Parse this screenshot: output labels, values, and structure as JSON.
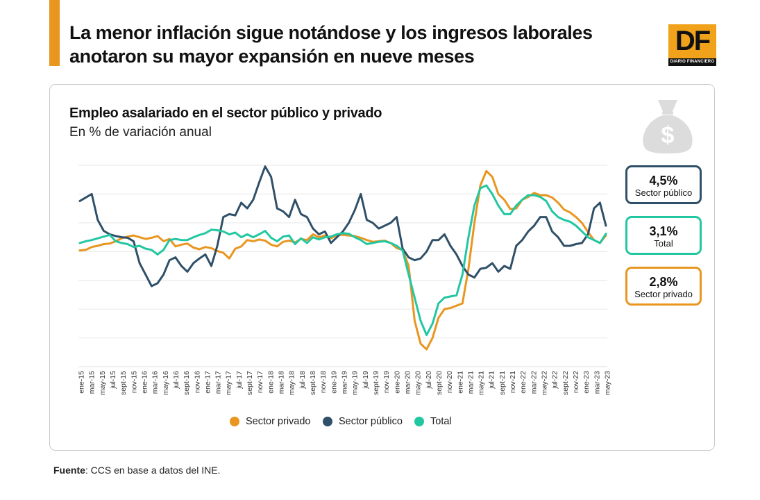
{
  "header": {
    "title": "La menor inflación sigue notándose y los ingresos laborales anotaron su mayor expansión en nueve meses"
  },
  "logo": {
    "letters": "DF",
    "tagline": "DIARIO FINANCIERO"
  },
  "callouts": [
    {
      "value": "4,5%",
      "label": "Sector público",
      "color": "#2f5068"
    },
    {
      "value": "3,1%",
      "label": "Total",
      "color": "#22c7a2"
    },
    {
      "value": "2,8%",
      "label": "Sector privado",
      "color": "#e8961f"
    }
  ],
  "footer": {
    "source_label": "Fuente",
    "source_text": ": CCS en base a datos del INE."
  },
  "chart_data": {
    "type": "line",
    "title": "Empleo asalariado en el sector público y privado",
    "subtitle": "En % de variación anual",
    "xlabel": "",
    "ylabel": "",
    "ylim": [
      -20,
      15
    ],
    "ygrid_values": [
      15,
      10,
      5,
      0,
      -5,
      -10,
      -15
    ],
    "grid": true,
    "legend_position": "bottom",
    "x_tick_labels": [
      "ene-15",
      "mar-15",
      "may-15",
      "jul-15",
      "sept-15",
      "nov-15",
      "ene-16",
      "mar-16",
      "may-16",
      "jul-16",
      "sept-16",
      "nov-16",
      "ene-17",
      "mar-17",
      "may-17",
      "jul-17",
      "sept-17",
      "nov-17",
      "ene-18",
      "mar-18",
      "may-18",
      "jul-18",
      "sept-18",
      "nov-18",
      "ene-19",
      "mar-19",
      "may-19",
      "jul-19",
      "sept-19",
      "nov-19",
      "ene-20",
      "mar-20",
      "may-20",
      "jul-20",
      "sept-20",
      "nov-20",
      "ene-21",
      "mar-21",
      "may-21",
      "jul-21",
      "sept-21",
      "nov-21",
      "ene-22",
      "mar-22",
      "may-22",
      "jul-22",
      "sept-22",
      "nov-22",
      "ene-23",
      "mar-23",
      "may-23"
    ],
    "series": [
      {
        "name": "Sector privado",
        "color": "#e8961f",
        "values": [
          0.2,
          0.3,
          0.8,
          1.0,
          1.3,
          1.4,
          1.8,
          2.3,
          2.6,
          2.8,
          2.5,
          2.2,
          2.4,
          2.7,
          1.8,
          2.2,
          0.9,
          1.2,
          1.4,
          0.7,
          0.4,
          0.8,
          0.6,
          0.1,
          -0.2,
          -1.2,
          0.5,
          0.9,
          2.0,
          1.8,
          2.1,
          1.9,
          1.2,
          0.9,
          1.7,
          1.9,
          1.6,
          2.2,
          2.0,
          3.0,
          2.5,
          2.8,
          2.3,
          2.9,
          2.9,
          2.8,
          2.7,
          2.4,
          2.0,
          1.7,
          1.8,
          1.9,
          1.5,
          0.6,
          0.3,
          -2.5,
          -12.0,
          -16.0,
          -17.0,
          -15.0,
          -11.5,
          -10.0,
          -9.8,
          -9.4,
          -9.0,
          -3.0,
          5.0,
          11.5,
          14.0,
          13.0,
          10.0,
          9.0,
          7.4,
          7.5,
          9.0,
          9.5,
          10.2,
          9.8,
          9.8,
          9.4,
          8.5,
          7.3,
          6.8,
          6.0,
          5.0,
          3.4,
          2.0,
          1.5,
          2.8
        ]
      },
      {
        "name": "Sector público",
        "color": "#2f5068",
        "values": [
          8.8,
          9.4,
          10.0,
          5.5,
          3.6,
          3.0,
          2.7,
          2.5,
          2.4,
          1.8,
          -2.0,
          -4.0,
          -6.0,
          -5.5,
          -4.0,
          -1.5,
          -1.0,
          -2.5,
          -3.5,
          -2.0,
          -1.2,
          -0.5,
          -2.5,
          1.0,
          6.0,
          6.5,
          6.3,
          8.5,
          7.5,
          9.0,
          12.0,
          14.8,
          13.0,
          7.5,
          7.0,
          6.0,
          9.0,
          6.5,
          6.0,
          4.0,
          3.0,
          3.5,
          1.5,
          2.5,
          3.5,
          5.0,
          7.2,
          10.0,
          5.5,
          5.0,
          4.0,
          4.5,
          5.0,
          6.0,
          0.5,
          -1.0,
          -1.5,
          -1.2,
          0.0,
          2.0,
          2.0,
          3.0,
          1.0,
          -0.5,
          -2.5,
          -4.0,
          -4.5,
          -3.0,
          -2.8,
          -2.0,
          -3.5,
          -2.5,
          -3.0,
          1.0,
          2.0,
          3.5,
          4.5,
          6.0,
          6.0,
          3.5,
          2.5,
          1.0,
          1.0,
          1.3,
          1.5,
          3.0,
          7.5,
          8.5,
          4.5
        ]
      },
      {
        "name": "Total",
        "color": "#22c7a2",
        "values": [
          1.5,
          1.8,
          2.0,
          2.3,
          2.6,
          2.9,
          1.8,
          1.5,
          1.3,
          0.8,
          1.0,
          0.5,
          0.3,
          -0.5,
          0.3,
          2.0,
          2.2,
          2.0,
          2.0,
          2.5,
          2.9,
          3.2,
          3.8,
          3.7,
          3.5,
          3.0,
          3.3,
          2.5,
          3.0,
          2.5,
          3.0,
          3.6,
          2.4,
          1.8,
          2.6,
          2.8,
          1.3,
          2.3,
          1.5,
          2.5,
          2.1,
          2.5,
          2.6,
          3.0,
          3.2,
          3.1,
          2.5,
          2.0,
          1.3,
          1.5,
          1.7,
          1.8,
          1.5,
          1.0,
          0.2,
          -4.0,
          -8.0,
          -12.0,
          -14.5,
          -12.5,
          -9.0,
          -8.0,
          -7.8,
          -7.6,
          -4.0,
          2.5,
          8.0,
          11.0,
          11.5,
          10.0,
          8.0,
          6.5,
          6.5,
          8.0,
          9.0,
          9.8,
          9.8,
          9.5,
          8.8,
          7.0,
          6.0,
          5.5,
          5.2,
          4.5,
          3.5,
          2.5,
          2.0,
          1.5,
          3.1
        ]
      }
    ]
  }
}
